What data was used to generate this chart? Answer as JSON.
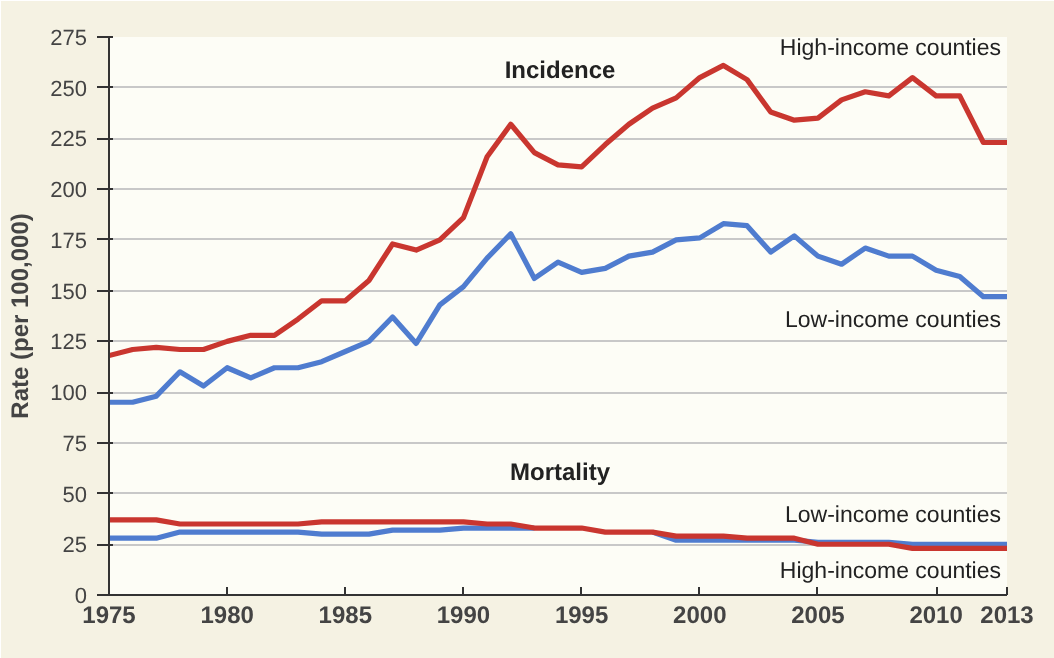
{
  "chart_data": {
    "type": "line",
    "ylabel": "Rate (per 100,000)",
    "x": [
      1975,
      1976,
      1977,
      1978,
      1979,
      1980,
      1981,
      1982,
      1983,
      1984,
      1985,
      1986,
      1987,
      1988,
      1989,
      1990,
      1991,
      1992,
      1993,
      1994,
      1995,
      1996,
      1997,
      1998,
      1999,
      2000,
      2001,
      2002,
      2003,
      2004,
      2005,
      2006,
      2007,
      2008,
      2009,
      2010,
      2011,
      2012,
      2013
    ],
    "series": [
      {
        "name": "High-income counties",
        "color": "#c9362f",
        "values": [
          118,
          121,
          122,
          121,
          121,
          125,
          128,
          128,
          136,
          145,
          145,
          155,
          173,
          170,
          175,
          186,
          216,
          232,
          218,
          212,
          211,
          222,
          232,
          240,
          245,
          255,
          261,
          254,
          238,
          234,
          235,
          244,
          248,
          246,
          255,
          246,
          246,
          223,
          223
        ]
      },
      {
        "name": "Low-income counties",
        "color": "#4f7ccf",
        "values": [
          95,
          95,
          98,
          110,
          103,
          112,
          107,
          112,
          112,
          115,
          120,
          125,
          137,
          124,
          143,
          152,
          166,
          178,
          156,
          164,
          159,
          161,
          167,
          169,
          175,
          176,
          183,
          182,
          169,
          177,
          167,
          163,
          171,
          167,
          167,
          160,
          157,
          147,
          147
        ]
      },
      {
        "name": "Low-income counties",
        "color": "#4f7ccf",
        "values": [
          28,
          28,
          28,
          31,
          31,
          31,
          31,
          31,
          31,
          30,
          30,
          30,
          32,
          32,
          32,
          33,
          33,
          33,
          33,
          null,
          null,
          null,
          null,
          31,
          27,
          27,
          27,
          27,
          27,
          27,
          26,
          26,
          26,
          26,
          25,
          25,
          25,
          25,
          25
        ]
      },
      {
        "name": "High-income counties",
        "color": "#c9362f",
        "values": [
          37,
          37,
          37,
          35,
          35,
          35,
          35,
          35,
          35,
          36,
          36,
          36,
          36,
          36,
          36,
          36,
          35,
          35,
          33,
          33,
          33,
          31,
          31,
          31,
          29,
          29,
          29,
          28,
          28,
          28,
          25,
          25,
          25,
          25,
          23,
          23,
          23,
          23,
          23
        ]
      }
    ],
    "annotations": [
      "Incidence",
      "Mortality"
    ],
    "xlim": [
      1975,
      2013
    ],
    "xticks": [
      1975,
      1980,
      1985,
      1990,
      1995,
      2000,
      2005,
      2010,
      2013
    ],
    "ylim": [
      0,
      275
    ],
    "yticks": [
      0,
      25,
      50,
      75,
      100,
      125,
      150,
      175,
      200,
      225,
      250,
      275
    ],
    "grid": "y",
    "marker": "none",
    "line_style": "solid"
  }
}
